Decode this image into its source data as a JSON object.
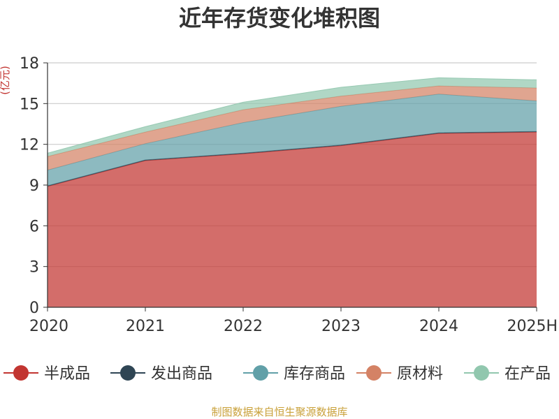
{
  "chart_data": {
    "type": "area",
    "stacked": true,
    "title": "近年存货变化堆积图",
    "ylabel": "(亿元)",
    "xlabel": "",
    "categories": [
      "2020",
      "2021",
      "2022",
      "2023",
      "2024",
      "2025H"
    ],
    "ylim": [
      0,
      18
    ],
    "yticks": [
      0,
      3,
      6,
      9,
      12,
      15,
      18
    ],
    "grid": true,
    "legend_position": "bottom",
    "series": [
      {
        "name": "半成品",
        "color": "#c23531",
        "values": [
          8.9,
          10.8,
          11.3,
          11.9,
          12.8,
          12.9
        ]
      },
      {
        "name": "发出商品",
        "color": "#2f4554",
        "values": [
          0.05,
          0.05,
          0.05,
          0.05,
          0.05,
          0.05
        ]
      },
      {
        "name": "库存商品",
        "color": "#61a0a8",
        "values": [
          1.15,
          1.2,
          2.25,
          2.85,
          2.85,
          2.25
        ]
      },
      {
        "name": "原材料",
        "color": "#d48265",
        "values": [
          1.0,
          0.85,
          0.95,
          0.75,
          0.6,
          0.95
        ]
      },
      {
        "name": "在产品",
        "color": "#91c7ae",
        "values": [
          0.25,
          0.4,
          0.55,
          0.65,
          0.6,
          0.6
        ]
      }
    ]
  },
  "source_text": "制图数据来自恒生聚源数据库"
}
